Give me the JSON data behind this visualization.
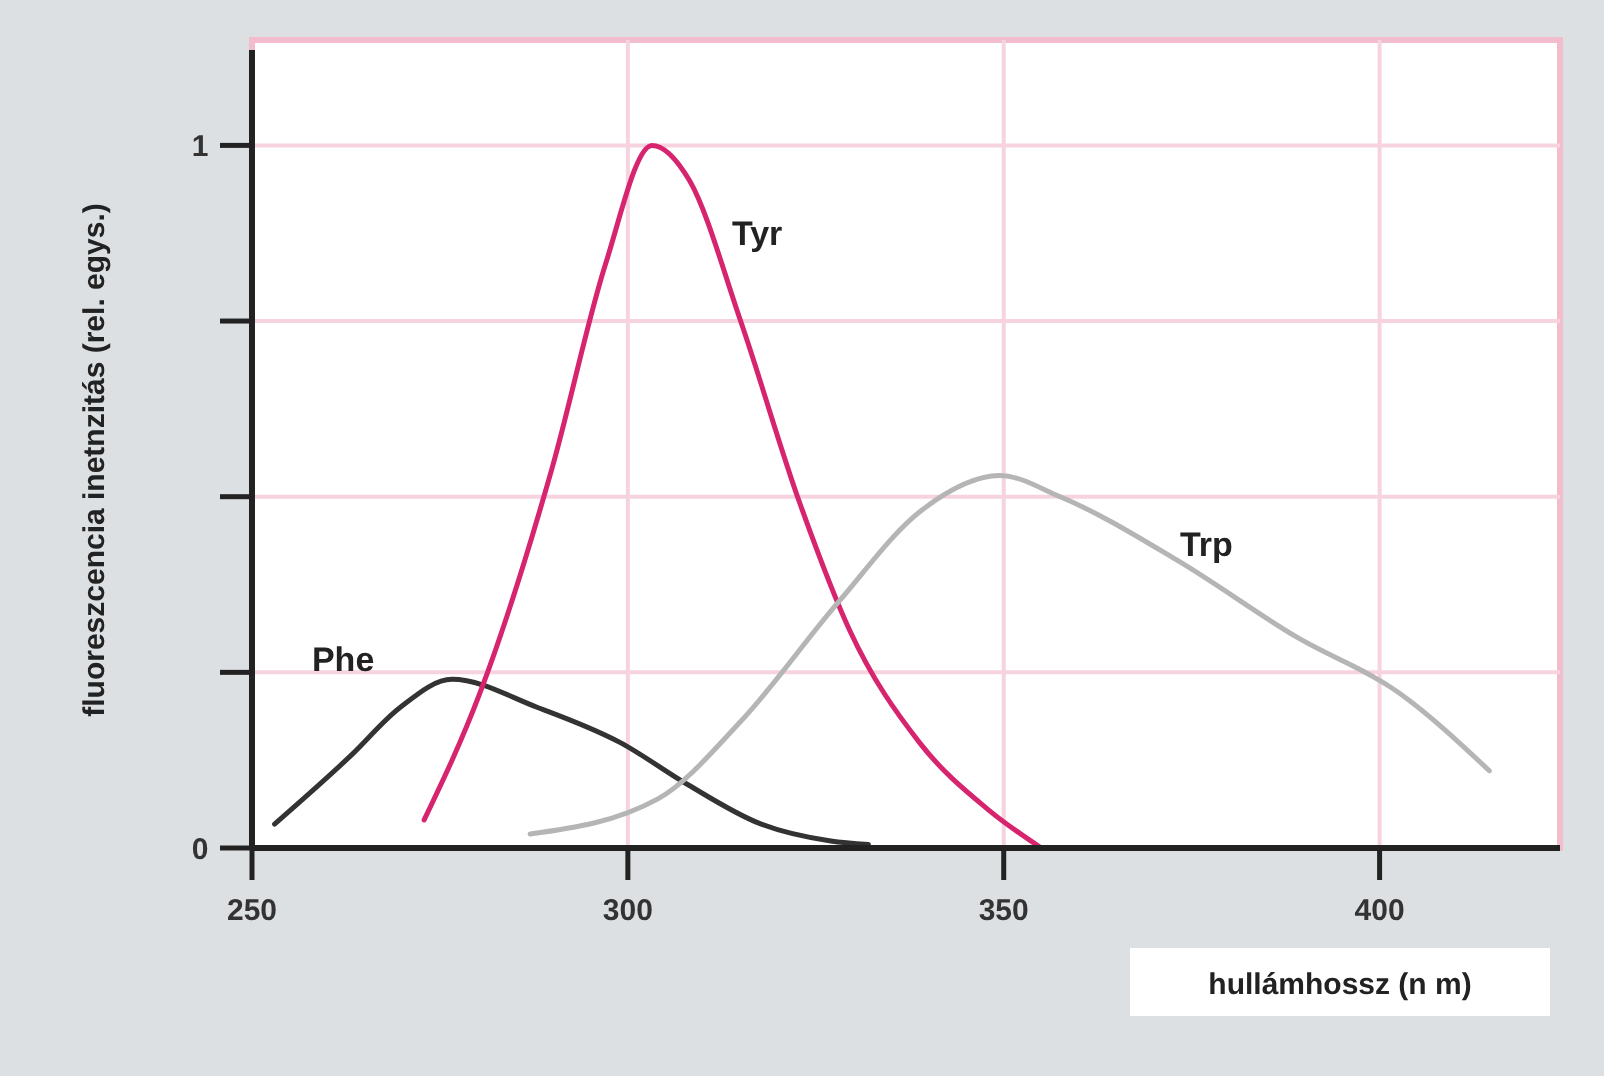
{
  "chart_data": {
    "type": "line",
    "xlabel": "hullámhossz (n m)",
    "ylabel": "fluoreszcencia inetnzitás (rel. egys.)",
    "xlim": [
      250,
      424
    ],
    "ylim": [
      0,
      1.15
    ],
    "xticks": [
      250,
      300,
      350,
      400
    ],
    "yticks": [
      0,
      {
        "value": 0.25,
        "label": null
      },
      {
        "value": 0.5,
        "label": null
      },
      {
        "value": 0.75,
        "label": null
      },
      1
    ],
    "grid": true,
    "marker": "none",
    "line_style": "solid",
    "series": [
      {
        "name": "Phe",
        "color": "#333333",
        "x": [
          253,
          263,
          269.7,
          276.6,
          288,
          299,
          308,
          317.5,
          327,
          332
        ],
        "values": [
          0.034,
          0.13,
          0.2,
          0.24,
          0.2,
          0.15,
          0.09,
          0.035,
          0.01,
          0.005
        ]
      },
      {
        "name": "Tyr",
        "color": "#d6246e",
        "x": [
          272.9,
          280.3,
          289.9,
          297,
          303.2,
          308.2,
          315,
          322.9,
          329.5,
          338.8,
          348,
          355
        ],
        "values": [
          0.04,
          0.22,
          0.54,
          0.83,
          1.0,
          0.95,
          0.75,
          0.49,
          0.31,
          0.15,
          0.054,
          0
        ]
      },
      {
        "name": "Trp",
        "color": "#b5b5b5",
        "x": [
          287,
          304,
          315,
          328,
          339,
          349.5,
          357.5,
          373,
          389,
          402.7,
          414.6
        ],
        "values": [
          0.02,
          0.07,
          0.18,
          0.35,
          0.48,
          0.53,
          0.5,
          0.41,
          0.3,
          0.22,
          0.11
        ]
      }
    ]
  }
}
